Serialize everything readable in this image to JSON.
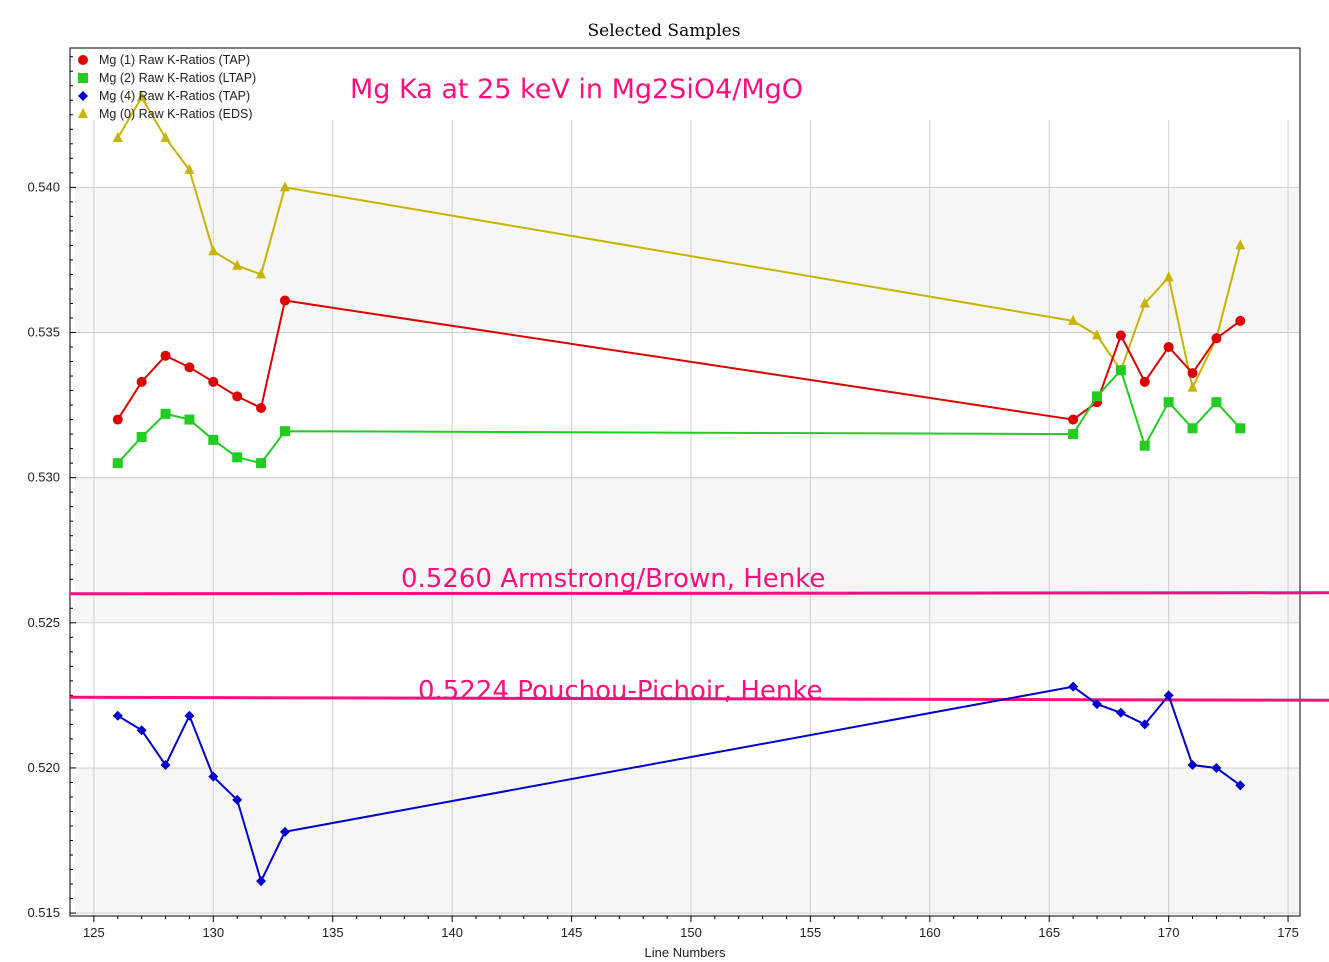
{
  "chart_data": {
    "type": "line",
    "title": "Selected Samples",
    "xlabel": "Line Numbers",
    "ylabel": "",
    "xlim": [
      124,
      175.5
    ],
    "ylim": [
      0.5149,
      0.5448
    ],
    "xticks": [
      125,
      130,
      135,
      140,
      145,
      150,
      155,
      160,
      165,
      170,
      175
    ],
    "xtick_labels": [
      "125",
      "130",
      "135",
      "140",
      "145",
      "150",
      "155",
      "160",
      "165",
      "170",
      "175"
    ],
    "yticks": [
      0.515,
      0.52,
      0.525,
      0.53,
      0.535,
      0.54
    ],
    "ytick_labels": [
      "0.515",
      "0.520",
      "0.525",
      "0.530",
      "0.535",
      "0.540"
    ],
    "grid": true,
    "legend_position": "top-left",
    "series": [
      {
        "name": "Mg (1) Raw K-Ratios (TAP)",
        "color": "#dd0000",
        "marker": "circle",
        "x": [
          126,
          127,
          128,
          129,
          130,
          131,
          132,
          133,
          166,
          167,
          168,
          169,
          170,
          171,
          172,
          173
        ],
        "y": [
          0.532,
          0.5333,
          0.5342,
          0.5338,
          0.5333,
          0.5328,
          0.5324,
          0.5361,
          0.532,
          0.5326,
          0.5349,
          0.5333,
          0.5345,
          0.5336,
          0.5348,
          0.5354
        ]
      },
      {
        "name": "Mg (2) Raw K-Ratios (LTAP)",
        "color": "#22cc22",
        "marker": "square",
        "x": [
          126,
          127,
          128,
          129,
          130,
          131,
          132,
          133,
          166,
          167,
          168,
          169,
          170,
          171,
          172,
          173
        ],
        "y": [
          0.5305,
          0.5314,
          0.5322,
          0.532,
          0.5313,
          0.5307,
          0.5305,
          0.5316,
          0.5315,
          0.5328,
          0.5337,
          0.5311,
          0.5326,
          0.5317,
          0.5326,
          0.5317
        ]
      },
      {
        "name": "Mg (4) Raw K-Ratios (TAP)",
        "color": "#0000cc",
        "marker": "diamond",
        "x": [
          126,
          127,
          128,
          129,
          130,
          131,
          132,
          133,
          166,
          167,
          168,
          169,
          170,
          171,
          172,
          173
        ],
        "y": [
          0.5218,
          0.5213,
          0.5201,
          0.5218,
          0.5197,
          0.5189,
          0.5161,
          0.5178,
          0.5228,
          0.5222,
          0.5219,
          0.5215,
          0.5225,
          0.5201,
          0.52,
          0.5194
        ]
      },
      {
        "name": "Mg (0) Raw K-Ratios (EDS)",
        "color": "#c8b400",
        "marker": "triangle",
        "x": [
          126,
          127,
          128,
          129,
          130,
          131,
          132,
          133,
          166,
          167,
          168,
          169,
          170,
          171,
          172,
          173
        ],
        "y": [
          0.5417,
          0.5431,
          0.5417,
          0.5406,
          0.5378,
          0.5373,
          0.537,
          0.54,
          0.5354,
          0.5349,
          0.5337,
          0.536,
          0.5369,
          0.5331,
          0.5348,
          0.538
        ]
      }
    ],
    "annotations": {
      "heading": "Mg Ka at 25 keV in Mg2SiO4/MgO",
      "line1": {
        "label": "0.5260 Armstrong/Brown, Henke",
        "value": 0.526,
        "color": "#ff0f7b"
      },
      "line2": {
        "label": "0.5224 Pouchou-Pichoir, Henke",
        "value": 0.5224,
        "color": "#ff0f7b"
      }
    }
  }
}
